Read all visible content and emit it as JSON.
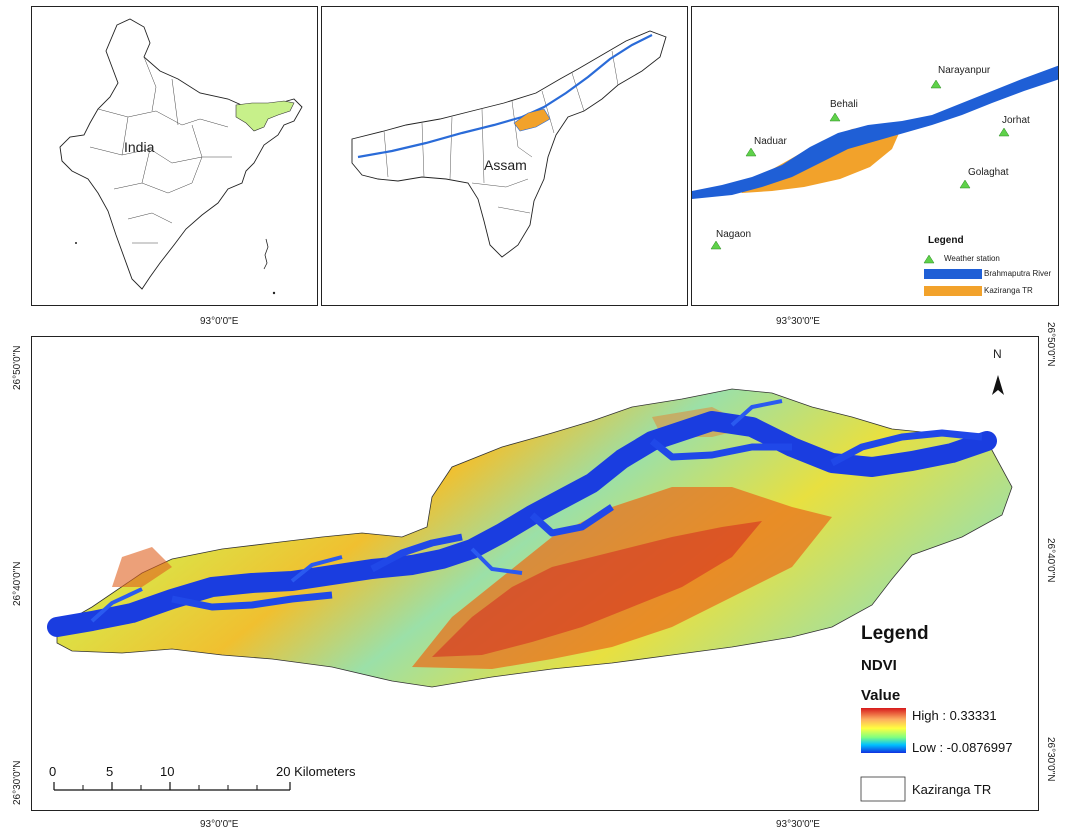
{
  "inset_india": {
    "label": "India"
  },
  "inset_assam": {
    "label": "Assam"
  },
  "inset_kaziranga": {
    "stations": [
      "Narayanpur",
      "Behali",
      "Naduar",
      "Jorhat",
      "Golaghat",
      "Nagaon"
    ],
    "legend": {
      "title": "Legend",
      "items": [
        "Weather station",
        "Brahmaputra River",
        "Kaziranga TR"
      ],
      "colors": {
        "station": "#5fd14a",
        "river": "#1f5fd6",
        "reserve": "#f2a22b"
      }
    }
  },
  "graticule": {
    "lon_top": [
      "93°0'0\"E",
      "93°30'0\"E"
    ],
    "lon_bottom": [
      "93°0'0\"E",
      "93°30'0\"E"
    ],
    "lat_left": [
      "26°50'0\"N",
      "26°40'0\"N",
      "26°30'0\"N"
    ],
    "lat_right": [
      "26°50'0\"N",
      "26°40'0\"N",
      "26°30'0\"N"
    ]
  },
  "north_arrow": {
    "label": "N"
  },
  "main_legend": {
    "title": "Legend",
    "layer": "NDVI",
    "value_label": "Value",
    "high": "High : 0.33331",
    "low": "Low : -0.0876997",
    "boundary": "Kaziranga TR"
  },
  "scale_bar": {
    "ticks": [
      "0",
      "5",
      "10",
      "20 Kilometers"
    ]
  },
  "colors": {
    "assam_highlight": "#c7f08a",
    "river": "#1f3fe0",
    "ndvi_high": "#d7191c",
    "ndvi_low": "#2b83ba"
  }
}
